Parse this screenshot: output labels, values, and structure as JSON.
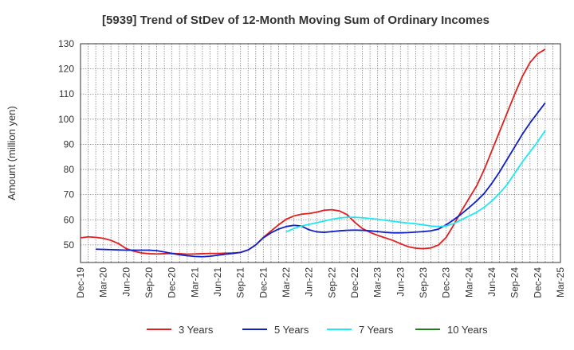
{
  "chart_data": {
    "type": "line",
    "title": "[5939]  Trend of StDev of 12-Month Moving Sum of Ordinary Incomes",
    "ylabel": "Amount (million yen)",
    "xlabel": "",
    "ylim": [
      43,
      130
    ],
    "yticks": [
      50,
      60,
      70,
      80,
      90,
      100,
      110,
      120,
      130
    ],
    "xlim": [
      "2019-12",
      "2025-03"
    ],
    "xticks": [
      "Dec-19",
      "Mar-20",
      "Jun-20",
      "Sep-20",
      "Dec-20",
      "Mar-21",
      "Jun-21",
      "Sep-21",
      "Dec-21",
      "Mar-22",
      "Jun-22",
      "Sep-22",
      "Dec-22",
      "Mar-23",
      "Jun-23",
      "Sep-23",
      "Dec-23",
      "Mar-24",
      "Jun-24",
      "Sep-24",
      "Dec-24",
      "Mar-25"
    ],
    "grid": true,
    "legend_position": "bottom",
    "series": [
      {
        "name": "3 Years",
        "color": "#e02020",
        "points": [
          [
            "2019-12",
            52.8
          ],
          [
            "2020-01",
            53.2
          ],
          [
            "2020-02",
            53.0
          ],
          [
            "2020-03",
            52.6
          ],
          [
            "2020-04",
            51.8
          ],
          [
            "2020-05",
            50.5
          ],
          [
            "2020-06",
            48.5
          ],
          [
            "2020-07",
            47.5
          ],
          [
            "2020-08",
            46.8
          ],
          [
            "2020-09",
            46.5
          ],
          [
            "2020-10",
            46.4
          ],
          [
            "2020-11",
            46.5
          ],
          [
            "2020-12",
            46.6
          ],
          [
            "2021-01",
            46.5
          ],
          [
            "2021-02",
            46.3
          ],
          [
            "2021-03",
            46.4
          ],
          [
            "2021-04",
            46.5
          ],
          [
            "2021-05",
            46.6
          ],
          [
            "2021-06",
            46.6
          ],
          [
            "2021-07",
            46.7
          ],
          [
            "2021-08",
            46.8
          ],
          [
            "2021-09",
            47.0
          ],
          [
            "2021-10",
            48.0
          ],
          [
            "2021-11",
            50.0
          ],
          [
            "2021-12",
            53.0
          ],
          [
            "2022-01",
            55.5
          ],
          [
            "2022-02",
            58.0
          ],
          [
            "2022-03",
            60.2
          ],
          [
            "2022-04",
            61.5
          ],
          [
            "2022-05",
            62.2
          ],
          [
            "2022-06",
            62.5
          ],
          [
            "2022-07",
            63.0
          ],
          [
            "2022-08",
            63.8
          ],
          [
            "2022-09",
            64.0
          ],
          [
            "2022-10",
            63.5
          ],
          [
            "2022-11",
            62.0
          ],
          [
            "2022-12",
            59.0
          ],
          [
            "2023-01",
            56.5
          ],
          [
            "2023-02",
            55.0
          ],
          [
            "2023-03",
            53.8
          ],
          [
            "2023-04",
            52.8
          ],
          [
            "2023-05",
            51.8
          ],
          [
            "2023-06",
            50.5
          ],
          [
            "2023-07",
            49.3
          ],
          [
            "2023-08",
            48.7
          ],
          [
            "2023-09",
            48.5
          ],
          [
            "2023-10",
            48.8
          ],
          [
            "2023-11",
            50.0
          ],
          [
            "2023-12",
            53.0
          ],
          [
            "2024-01",
            58.0
          ],
          [
            "2024-02",
            63.5
          ],
          [
            "2024-03",
            68.5
          ],
          [
            "2024-04",
            73.5
          ],
          [
            "2024-05",
            80.0
          ],
          [
            "2024-06",
            87.5
          ],
          [
            "2024-07",
            95.0
          ],
          [
            "2024-08",
            102.5
          ],
          [
            "2024-09",
            110.0
          ],
          [
            "2024-10",
            117.0
          ],
          [
            "2024-11",
            122.5
          ],
          [
            "2024-12",
            126.0
          ],
          [
            "2025-01",
            127.8
          ]
        ]
      },
      {
        "name": "5 Years",
        "color": "#1020c8",
        "points": [
          [
            "2020-02",
            48.3
          ],
          [
            "2020-03",
            48.2
          ],
          [
            "2020-04",
            48.1
          ],
          [
            "2020-05",
            48.0
          ],
          [
            "2020-06",
            47.9
          ],
          [
            "2020-07",
            47.9
          ],
          [
            "2020-08",
            47.9
          ],
          [
            "2020-09",
            47.9
          ],
          [
            "2020-10",
            47.7
          ],
          [
            "2020-11",
            47.2
          ],
          [
            "2020-12",
            46.6
          ],
          [
            "2021-01",
            46.1
          ],
          [
            "2021-02",
            45.7
          ],
          [
            "2021-03",
            45.4
          ],
          [
            "2021-04",
            45.3
          ],
          [
            "2021-05",
            45.5
          ],
          [
            "2021-06",
            45.9
          ],
          [
            "2021-07",
            46.3
          ],
          [
            "2021-08",
            46.6
          ],
          [
            "2021-09",
            47.0
          ],
          [
            "2021-10",
            48.0
          ],
          [
            "2021-11",
            50.0
          ],
          [
            "2021-12",
            52.8
          ],
          [
            "2022-01",
            54.8
          ],
          [
            "2022-02",
            56.3
          ],
          [
            "2022-03",
            57.3
          ],
          [
            "2022-04",
            57.8
          ],
          [
            "2022-05",
            57.5
          ],
          [
            "2022-06",
            56.0
          ],
          [
            "2022-07",
            55.2
          ],
          [
            "2022-08",
            55.0
          ],
          [
            "2022-09",
            55.3
          ],
          [
            "2022-10",
            55.6
          ],
          [
            "2022-11",
            55.8
          ],
          [
            "2022-12",
            55.9
          ],
          [
            "2023-01",
            55.8
          ],
          [
            "2023-02",
            55.6
          ],
          [
            "2023-03",
            55.3
          ],
          [
            "2023-04",
            55.0
          ],
          [
            "2023-05",
            54.8
          ],
          [
            "2023-06",
            54.8
          ],
          [
            "2023-07",
            54.9
          ],
          [
            "2023-08",
            55.1
          ],
          [
            "2023-09",
            55.3
          ],
          [
            "2023-10",
            55.6
          ],
          [
            "2023-11",
            56.3
          ],
          [
            "2023-12",
            58.0
          ],
          [
            "2024-01",
            60.0
          ],
          [
            "2024-02",
            62.3
          ],
          [
            "2024-03",
            64.8
          ],
          [
            "2024-04",
            67.5
          ],
          [
            "2024-05",
            70.5
          ],
          [
            "2024-06",
            74.5
          ],
          [
            "2024-07",
            79.0
          ],
          [
            "2024-08",
            84.0
          ],
          [
            "2024-09",
            89.0
          ],
          [
            "2024-10",
            94.0
          ],
          [
            "2024-11",
            98.5
          ],
          [
            "2024-12",
            102.5
          ],
          [
            "2025-01",
            106.5
          ]
        ]
      },
      {
        "name": "7 Years",
        "color": "#20e8f0",
        "points": [
          [
            "2022-03",
            55.2
          ],
          [
            "2022-04",
            56.5
          ],
          [
            "2022-05",
            57.5
          ],
          [
            "2022-06",
            58.2
          ],
          [
            "2022-07",
            58.8
          ],
          [
            "2022-08",
            59.5
          ],
          [
            "2022-09",
            60.2
          ],
          [
            "2022-10",
            60.7
          ],
          [
            "2022-11",
            61.0
          ],
          [
            "2022-12",
            61.0
          ],
          [
            "2023-01",
            60.8
          ],
          [
            "2023-02",
            60.5
          ],
          [
            "2023-03",
            60.2
          ],
          [
            "2023-04",
            59.8
          ],
          [
            "2023-05",
            59.4
          ],
          [
            "2023-06",
            59.0
          ],
          [
            "2023-07",
            58.7
          ],
          [
            "2023-08",
            58.4
          ],
          [
            "2023-09",
            58.0
          ],
          [
            "2023-10",
            57.5
          ],
          [
            "2023-11",
            57.3
          ],
          [
            "2023-12",
            57.5
          ],
          [
            "2024-01",
            58.5
          ],
          [
            "2024-02",
            60.0
          ],
          [
            "2024-03",
            61.5
          ],
          [
            "2024-04",
            63.0
          ],
          [
            "2024-05",
            65.0
          ],
          [
            "2024-06",
            67.5
          ],
          [
            "2024-07",
            70.5
          ],
          [
            "2024-08",
            74.0
          ],
          [
            "2024-09",
            78.5
          ],
          [
            "2024-10",
            83.0
          ],
          [
            "2024-11",
            87.0
          ],
          [
            "2024-12",
            91.0
          ],
          [
            "2025-01",
            95.5
          ]
        ]
      },
      {
        "name": "10 Years",
        "color": "#208020",
        "points": []
      }
    ]
  }
}
